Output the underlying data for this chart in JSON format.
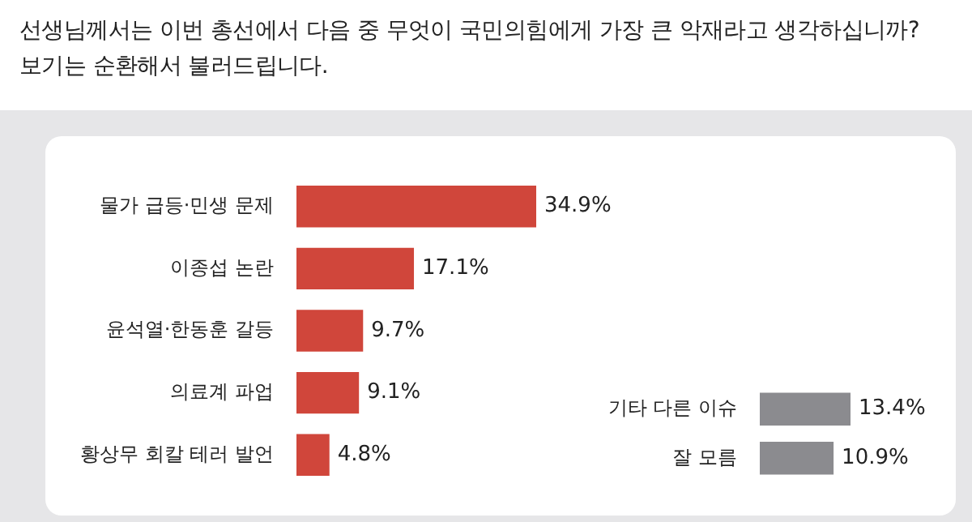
{
  "chart_data": [
    {
      "type": "bar",
      "orientation": "horizontal",
      "title": "선생님께서는 이번 총선에서 다음 중 무엇이 국민의힘에게 가장 큰 악재라고 생각하십니까?",
      "subtitle": "보기는 순환해서 불러드립니다.",
      "categories": [
        "물가 급등·민생 문제",
        "이종섭 논란",
        "윤석열·한동훈 갈등",
        "의료계 파업",
        "황상무 회칼 테러 발언"
      ],
      "values": [
        34.9,
        17.1,
        9.7,
        9.1,
        4.8
      ],
      "value_labels": [
        "34.9%",
        "17.1%",
        "9.7%",
        "9.1%",
        "4.8%"
      ],
      "color": "#d0463b",
      "tick_labels": "y"
    },
    {
      "type": "bar",
      "orientation": "horizontal",
      "categories": [
        "기타 다른 이슈",
        "잘 모름"
      ],
      "values": [
        13.4,
        10.9
      ],
      "value_labels": [
        "13.4%",
        "10.9%"
      ],
      "color": "#8b8b8f",
      "tick_labels": "y"
    }
  ]
}
